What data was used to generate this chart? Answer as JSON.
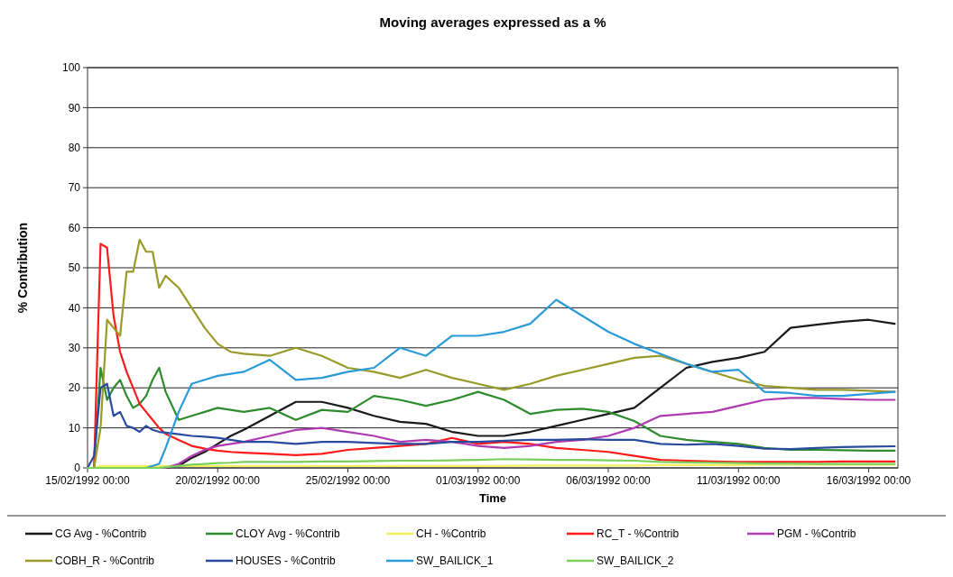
{
  "chart_data": {
    "type": "line",
    "title": "Moving averages expressed as a %",
    "xlabel": "Time",
    "ylabel": "% Contribution",
    "x": [
      "1992-02-15T00:00",
      "1992-02-15T06:00",
      "1992-02-15T12:00",
      "1992-02-15T18:00",
      "1992-02-16T00:00",
      "1992-02-16T06:00",
      "1992-02-16T12:00",
      "1992-02-16T18:00",
      "1992-02-17T00:00",
      "1992-02-17T06:00",
      "1992-02-17T12:00",
      "1992-02-17T18:00",
      "1992-02-18T00:00",
      "1992-02-18T12:00",
      "1992-02-19T00:00",
      "1992-02-19T12:00",
      "1992-02-20T00:00",
      "1992-02-20T12:00",
      "1992-02-21T00:00",
      "1992-02-22T00:00",
      "1992-02-23T00:00",
      "1992-02-24T00:00",
      "1992-02-25T00:00",
      "1992-02-26T00:00",
      "1992-02-27T00:00",
      "1992-02-28T00:00",
      "1992-02-29T00:00",
      "1992-03-01T00:00",
      "1992-03-02T00:00",
      "1992-03-03T00:00",
      "1992-03-04T00:00",
      "1992-03-05T00:00",
      "1992-03-06T00:00",
      "1992-03-07T00:00",
      "1992-03-08T00:00",
      "1992-03-09T00:00",
      "1992-03-10T00:00",
      "1992-03-11T00:00",
      "1992-03-12T00:00",
      "1992-03-13T00:00",
      "1992-03-14T00:00",
      "1992-03-15T00:00",
      "1992-03-16T00:00",
      "1992-03-17T00:00"
    ],
    "series": [
      {
        "name": "CG Avg - %Contrib",
        "color": "#1a1a1a",
        "values": [
          0,
          0,
          0,
          0,
          0,
          0,
          0,
          0,
          0,
          0,
          0,
          0,
          0,
          0.5,
          2.5,
          4,
          6,
          8,
          9.5,
          13,
          16.5,
          16.5,
          15,
          13,
          11.5,
          11,
          9,
          8,
          8,
          9,
          10.5,
          12,
          13.5,
          15,
          20,
          25,
          26.5,
          27.5,
          29,
          35,
          35.8,
          36.5,
          37,
          36
        ]
      },
      {
        "name": "CLOY Avg - %Contrib",
        "color": "#2e8b2e",
        "values": [
          0,
          0,
          25,
          17,
          20,
          22,
          18,
          15,
          16,
          18,
          22,
          25,
          19,
          12,
          13,
          14,
          15,
          14.5,
          14,
          15,
          12,
          14.5,
          14,
          18,
          17,
          15.5,
          17,
          19,
          17,
          13.5,
          14.5,
          14.8,
          14,
          11.7,
          8,
          7,
          6.5,
          6,
          5,
          4.5,
          4.5,
          4.4,
          4.3,
          4.3
        ]
      },
      {
        "name": "CH - %Contrib",
        "color": "#f5f060",
        "values": [
          0,
          0,
          0.5,
          0.5,
          0.5,
          0.5,
          0.5,
          0.5,
          0.5,
          0.5,
          0.5,
          0.5,
          0.5,
          0.5,
          0.5,
          0.5,
          0.5,
          0.5,
          0.5,
          0.5,
          0.5,
          0.5,
          0.5,
          0.5,
          0.5,
          0.5,
          0.5,
          0.5,
          0.5,
          0.6,
          0.6,
          0.6,
          0.6,
          0.6,
          0.7,
          0.7,
          0.7,
          0.7,
          0.8,
          0.8,
          0.8,
          0.8,
          0.8,
          0.8
        ]
      },
      {
        "name": "RC_T - %Contrib",
        "color": "#ff1a1a",
        "values": [
          0,
          0,
          56,
          55,
          38,
          29,
          24,
          20,
          16,
          14,
          12,
          10,
          8.5,
          7,
          5.5,
          4.8,
          4.3,
          4,
          3.8,
          3.5,
          3.2,
          3.5,
          4.5,
          5,
          5.5,
          6,
          7.5,
          6,
          6.5,
          6,
          5,
          4.5,
          4,
          3,
          2,
          1.8,
          1.6,
          1.5,
          1.5,
          1.5,
          1.5,
          1.6,
          1.6,
          1.6
        ]
      },
      {
        "name": "PGM - %Contrib",
        "color": "#b03ab0",
        "values": [
          null,
          null,
          null,
          null,
          null,
          null,
          null,
          null,
          null,
          null,
          null,
          0,
          0,
          1,
          3,
          4.5,
          5.5,
          6,
          6.5,
          8,
          9.5,
          10,
          9,
          8,
          6.5,
          7,
          6.5,
          5.5,
          5,
          5.5,
          6.5,
          7,
          8,
          10,
          13,
          13.5,
          14,
          15.5,
          17,
          17.5,
          17.5,
          17.2,
          17,
          17
        ]
      },
      {
        "name": "COBH_R - %Contrib",
        "color": "#9a9a2a",
        "values": [
          0,
          0,
          10,
          37,
          35,
          33,
          49,
          49,
          57,
          54,
          54,
          45,
          48,
          45,
          40,
          35,
          31,
          29,
          28.5,
          28,
          30,
          28,
          25,
          24,
          22.5,
          24.5,
          22.5,
          21,
          19.5,
          21,
          23,
          24.5,
          26,
          27.5,
          28,
          26,
          24,
          22,
          20.5,
          20,
          19.5,
          19.5,
          19.3,
          19
        ]
      },
      {
        "name": "HOUSES - %Contrib",
        "color": "#2a4aa0",
        "values": [
          0,
          3,
          20,
          21,
          13,
          14,
          10.5,
          10,
          9,
          10.5,
          9.5,
          9,
          8.8,
          8.4,
          8,
          7.8,
          7.5,
          7,
          6.5,
          6.5,
          6,
          6.5,
          6.5,
          6.2,
          6,
          6,
          6.5,
          6.5,
          6.8,
          7,
          7,
          7.2,
          7,
          7,
          6,
          5.8,
          6,
          5.5,
          4.8,
          4.7,
          5,
          5.2,
          5.3,
          5.4
        ]
      },
      {
        "name": "SW_BAILICK_1",
        "color": "#2a9ad8",
        "values": [
          null,
          null,
          null,
          null,
          null,
          null,
          null,
          null,
          null,
          0,
          0.5,
          1,
          5,
          14,
          21,
          22,
          23,
          23.5,
          24,
          27,
          22,
          22.5,
          24,
          25,
          30,
          28,
          33,
          33,
          34,
          36,
          42,
          38,
          34,
          31,
          28.5,
          26,
          24,
          24.5,
          19,
          18.7,
          18,
          18,
          18.5,
          19
        ]
      },
      {
        "name": "SW_BAILICK_2",
        "color": "#7ccf5a",
        "values": [
          0,
          0,
          0,
          0,
          0,
          0,
          0,
          0,
          0,
          0,
          0,
          0,
          0.2,
          0.5,
          0.8,
          1,
          1.2,
          1.3,
          1.5,
          1.5,
          1.5,
          1.6,
          1.6,
          1.7,
          1.8,
          1.8,
          1.9,
          2,
          2.2,
          2.1,
          2,
          2,
          1.9,
          1.8,
          1.5,
          1.4,
          1.3,
          1.2,
          1.1,
          1.1,
          1,
          1,
          1,
          1
        ]
      }
    ],
    "xlim": [
      "1992-02-15T00:00",
      "1992-03-17T03:00"
    ],
    "xticks": [
      {
        "value": "1992-02-15T00:00",
        "label": "15/02/1992 00:00"
      },
      {
        "value": "1992-02-20T00:00",
        "label": "20/02/1992 00:00"
      },
      {
        "value": "1992-02-25T00:00",
        "label": "25/02/1992 00:00"
      },
      {
        "value": "1992-03-01T00:00",
        "label": "01/03/1992 00:00"
      },
      {
        "value": "1992-03-06T00:00",
        "label": "06/03/1992 00:00"
      },
      {
        "value": "1992-03-11T00:00",
        "label": "11/03/1992 00:00"
      },
      {
        "value": "1992-03-16T00:00",
        "label": "16/03/1992 00:00"
      }
    ],
    "ylim": [
      0,
      100
    ],
    "yticks": [
      0,
      10,
      20,
      30,
      40,
      50,
      60,
      70,
      80,
      90,
      100
    ],
    "grid": "y",
    "legend": "bottom",
    "marker": "none",
    "line_style": "solid"
  }
}
